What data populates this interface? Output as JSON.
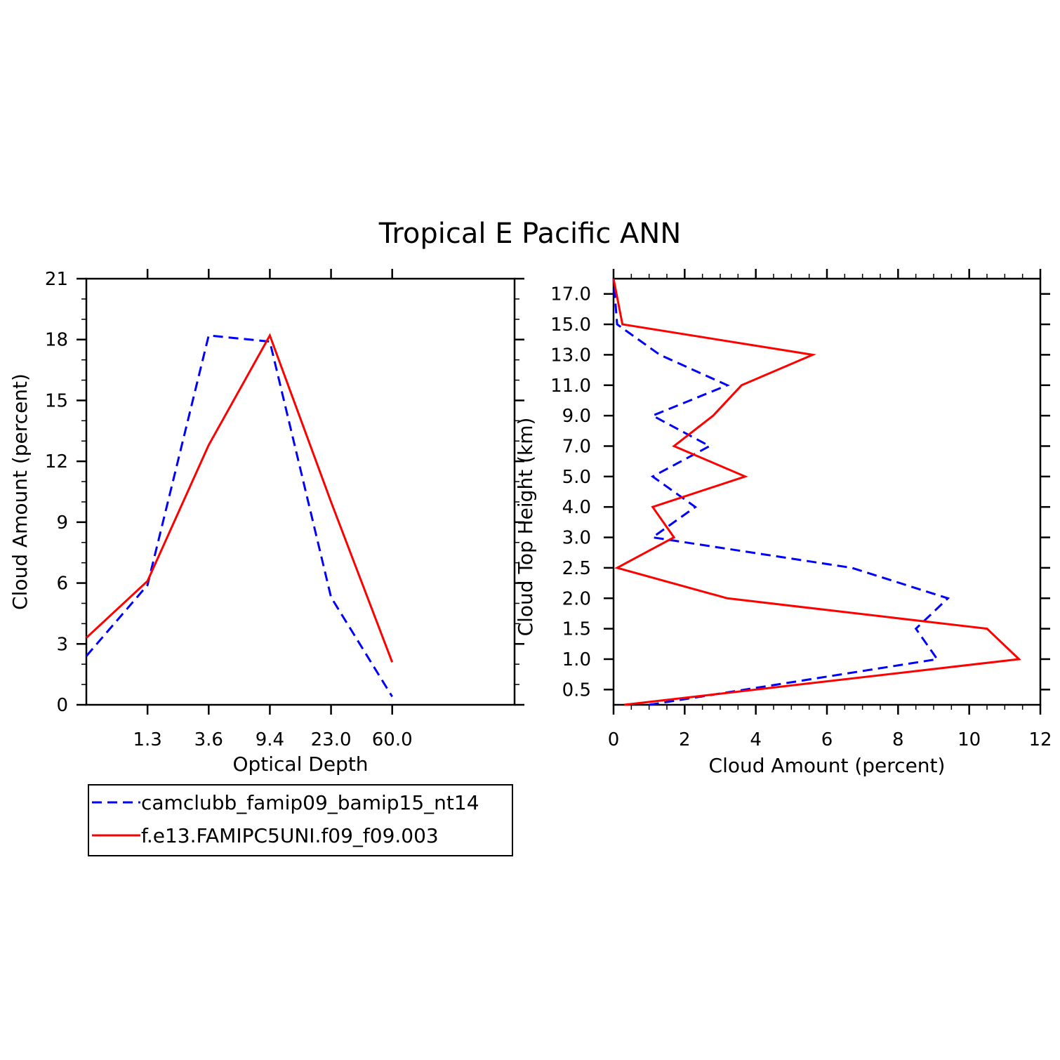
{
  "title": "Tropical E Pacific ANN",
  "series_styles": [
    {
      "color": "#0000ff",
      "dash": "dashed"
    },
    {
      "color": "#ff0000",
      "dash": "solid"
    }
  ],
  "legend": {
    "entries": [
      "camclubb_famip09_bamip15_nt14",
      "f.e13.FAMIPC5UNI.f09_f09.003"
    ]
  },
  "chart_data": [
    {
      "type": "line",
      "title": "",
      "xlabel": "Optical Depth",
      "ylabel": "Cloud Amount (percent)",
      "x_tick_labels": [
        "1.3",
        "3.6",
        "9.4",
        "23.0",
        "60.0"
      ],
      "x_bins": 7,
      "y_ticks": [
        0,
        3,
        6,
        9,
        12,
        15,
        18,
        21
      ],
      "ylim": [
        0,
        21
      ],
      "series": [
        {
          "name": "camclubb_famip09_bamip15_nt14",
          "values": [
            2.4,
            5.9,
            18.2,
            17.9,
            5.3,
            0.4
          ]
        },
        {
          "name": "f.e13.FAMIPC5UNI.f09_f09.003",
          "values": [
            3.3,
            6.1,
            12.8,
            18.2,
            10.0,
            2.1
          ]
        }
      ]
    },
    {
      "type": "line",
      "title": "",
      "xlabel": "Cloud Amount (percent)",
      "ylabel": "Cloud Top Height (km)",
      "x_ticks": [
        0,
        2,
        4,
        6,
        8,
        10,
        12
      ],
      "xlim": [
        0,
        12
      ],
      "y_tick_labels": [
        "0.5",
        "1.0",
        "1.5",
        "2.0",
        "2.5",
        "3.0",
        "4.0",
        "5.0",
        "7.0",
        "9.0",
        "11.0",
        "13.0",
        "15.0",
        "17.0"
      ],
      "series": [
        {
          "name": "camclubb_famip09_bamip15_nt14",
          "values": [
            1.0,
            9.1,
            8.5,
            9.4,
            6.7,
            1.1,
            2.3,
            1.1,
            2.7,
            1.1,
            3.2,
            1.3,
            0.1,
            0.0
          ]
        },
        {
          "name": "f.e13.FAMIPC5UNI.f09_f09.003",
          "values": [
            0.3,
            11.4,
            10.5,
            3.2,
            0.1,
            1.7,
            1.1,
            3.7,
            1.7,
            2.8,
            3.6,
            5.6,
            0.25,
            0.0
          ]
        }
      ]
    }
  ]
}
